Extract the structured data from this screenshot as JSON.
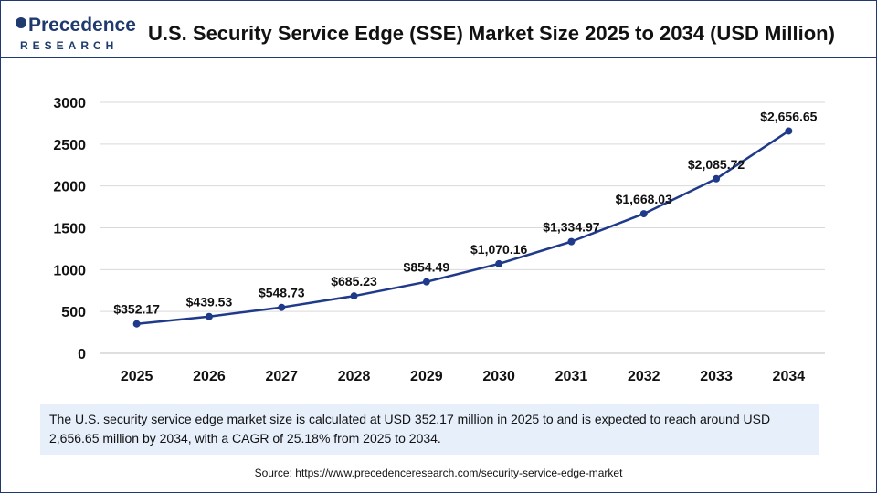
{
  "header": {
    "logo_main": "Precedence",
    "logo_sub": "RESEARCH",
    "title": "U.S. Security Service Edge (SSE) Market Size 2025 to 2034 (USD Million)"
  },
  "chart_data": {
    "type": "line",
    "title": "U.S. Security Service Edge (SSE) Market Size 2025 to 2034 (USD Million)",
    "xlabel": "",
    "ylabel": "",
    "ylim": [
      0,
      3000
    ],
    "yticks": [
      0,
      500,
      1000,
      1500,
      2000,
      2500,
      3000
    ],
    "categories": [
      "2025",
      "2026",
      "2027",
      "2028",
      "2029",
      "2030",
      "2031",
      "2032",
      "2033",
      "2034"
    ],
    "values": [
      352.17,
      439.53,
      548.73,
      685.23,
      854.49,
      1070.16,
      1334.97,
      1668.03,
      2085.72,
      2656.65
    ],
    "labels": [
      "$352.17",
      "$439.53",
      "$548.73",
      "$685.23",
      "$854.49",
      "$1,070.16",
      "$1,334.97",
      "$1,668.03",
      "$2,085.72",
      "$2,656.65"
    ],
    "grid": true,
    "line_color": "#1f3a8a",
    "grid_color": "#d9d9d9"
  },
  "note": {
    "text": "The U.S. security service edge market size is calculated at USD 352.17 million in 2025 to and is expected to reach around USD 2,656.65 million by 2034, with a CAGR of 25.18% from 2025 to 2034."
  },
  "source": {
    "text": "Source: https://www.precedenceresearch.com/security-service-edge-market"
  }
}
